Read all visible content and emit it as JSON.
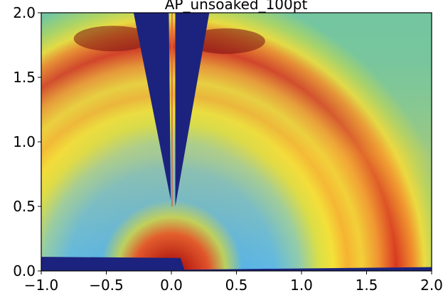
{
  "chart_data": {
    "type": "heatmap",
    "title": "AP_unsoaked_100pt",
    "xlim": [
      -1,
      2
    ],
    "ylim": [
      0,
      2
    ],
    "xticks": [
      {
        "value": -1,
        "label": "−1.0"
      },
      {
        "value": -0.5,
        "label": "−0.5"
      },
      {
        "value": 0,
        "label": "0.0"
      },
      {
        "value": 0.5,
        "label": "0.5"
      },
      {
        "value": 1,
        "label": "1.0"
      },
      {
        "value": 1.5,
        "label": "1.5"
      },
      {
        "value": 2,
        "label": "2.0"
      }
    ],
    "yticks": [
      {
        "value": 0,
        "label": "0.0"
      },
      {
        "value": 0.5,
        "label": "0.5"
      },
      {
        "value": 1,
        "label": "1.0"
      },
      {
        "value": 1.5,
        "label": "1.5"
      },
      {
        "value": 2,
        "label": "2.0"
      }
    ]
  }
}
